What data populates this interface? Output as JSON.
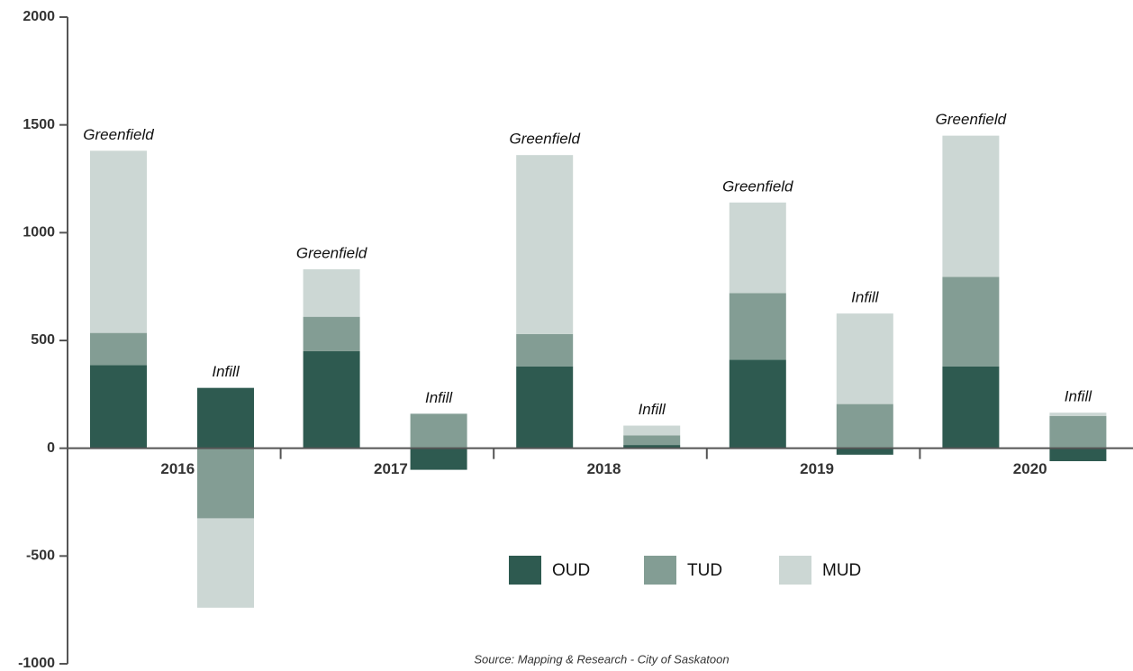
{
  "chart_data": {
    "type": "bar",
    "stacked": true,
    "categories": [
      "2016",
      "2017",
      "2018",
      "2019",
      "2020"
    ],
    "subgroups": [
      "Greenfield",
      "Infill"
    ],
    "series": [
      {
        "name": "OUD",
        "color": "#2e5a50",
        "values": [
          [
            385,
            280
          ],
          [
            450,
            -100
          ],
          [
            380,
            15
          ],
          [
            410,
            -30
          ],
          [
            380,
            -60
          ]
        ]
      },
      {
        "name": "TUD",
        "color": "#839d94",
        "values": [
          [
            150,
            -325
          ],
          [
            160,
            160
          ],
          [
            150,
            45
          ],
          [
            310,
            205
          ],
          [
            415,
            150
          ]
        ]
      },
      {
        "name": "MUD",
        "color": "#ccd7d4",
        "values": [
          [
            845,
            -415
          ],
          [
            220,
            0
          ],
          [
            830,
            45
          ],
          [
            420,
            420
          ],
          [
            655,
            15
          ]
        ]
      }
    ],
    "ylim": [
      -1000,
      2000
    ],
    "yticks": [
      -1000,
      -500,
      0,
      500,
      1000,
      1500,
      2000
    ],
    "source": "Source: Mapping & Research - City of Saskatoon"
  }
}
